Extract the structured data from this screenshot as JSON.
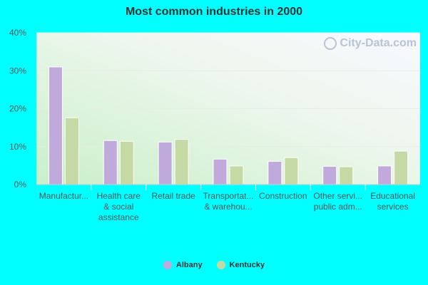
{
  "chart_data": {
    "type": "bar",
    "title": "Most common industries in 2000",
    "xlabel": "",
    "ylabel": "",
    "ylim": [
      0,
      40
    ],
    "yticks": [
      "0%",
      "10%",
      "20%",
      "30%",
      "40%"
    ],
    "categories": [
      [
        "Manufactur..."
      ],
      [
        "Health care",
        "& social",
        "assistance"
      ],
      [
        "Retail trade"
      ],
      [
        "Transportat...",
        "& warehou..."
      ],
      [
        "Construction"
      ],
      [
        "Other servi...",
        "public adm..."
      ],
      [
        "Educational",
        "services"
      ]
    ],
    "series": [
      {
        "name": "Albany",
        "color": "#c0aadc",
        "values": [
          31.0,
          11.6,
          11.2,
          6.7,
          6.1,
          4.8,
          4.9
        ]
      },
      {
        "name": "Kentucky",
        "color": "#c5d9a5",
        "values": [
          17.6,
          11.4,
          11.9,
          4.9,
          7.1,
          4.7,
          8.8
        ]
      }
    ],
    "grid": true,
    "legend_position": "bottom"
  },
  "watermark": {
    "text": "City-Data.com",
    "icon": "magnifier-icon"
  }
}
